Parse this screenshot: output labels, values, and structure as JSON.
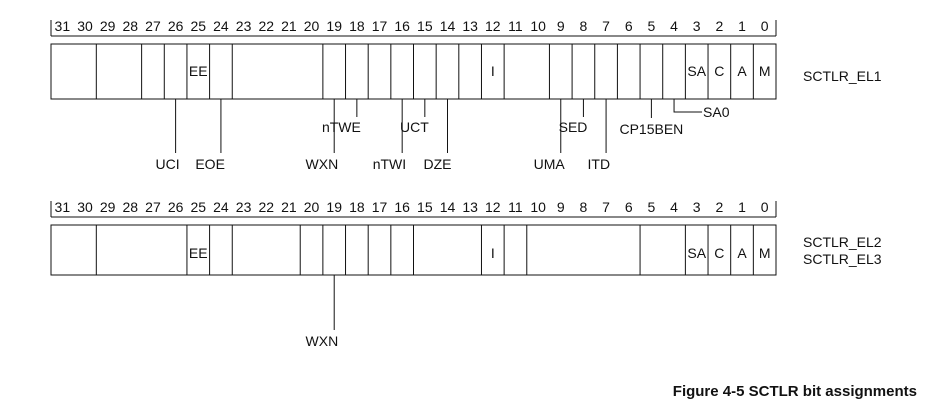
{
  "bit_numbers": [
    "31",
    "30",
    "29",
    "28",
    "27",
    "26",
    "25",
    "24",
    "23",
    "22",
    "21",
    "20",
    "19",
    "18",
    "17",
    "16",
    "15",
    "14",
    "13",
    "12",
    "11",
    "10",
    "9",
    "8",
    "7",
    "6",
    "5",
    "4",
    "3",
    "2",
    "1",
    "0"
  ],
  "registers": [
    {
      "names": [
        "SCTLR_EL1"
      ],
      "cells": [
        {
          "bits": "31-30",
          "label": ""
        },
        {
          "bits": "29-28",
          "label": ""
        },
        {
          "bits": "27",
          "label": ""
        },
        {
          "bits": "26",
          "label": ""
        },
        {
          "bits": "25",
          "label": "EE"
        },
        {
          "bits": "24",
          "label": ""
        },
        {
          "bits": "23-20",
          "label": ""
        },
        {
          "bits": "19",
          "label": ""
        },
        {
          "bits": "18",
          "label": ""
        },
        {
          "bits": "17",
          "label": ""
        },
        {
          "bits": "16",
          "label": ""
        },
        {
          "bits": "15",
          "label": ""
        },
        {
          "bits": "14",
          "label": ""
        },
        {
          "bits": "13",
          "label": ""
        },
        {
          "bits": "12",
          "label": "I"
        },
        {
          "bits": "11-10",
          "label": ""
        },
        {
          "bits": "9",
          "label": ""
        },
        {
          "bits": "8",
          "label": ""
        },
        {
          "bits": "7",
          "label": ""
        },
        {
          "bits": "6",
          "label": ""
        },
        {
          "bits": "5",
          "label": ""
        },
        {
          "bits": "4",
          "label": ""
        },
        {
          "bits": "3",
          "label": "SA"
        },
        {
          "bits": "2",
          "label": "C"
        },
        {
          "bits": "1",
          "label": "A"
        },
        {
          "bits": "0",
          "label": "M"
        }
      ],
      "callouts": [
        {
          "bit": 26,
          "label": "UCI",
          "level": "low"
        },
        {
          "bit": 24,
          "label": "EOE",
          "level": "low"
        },
        {
          "bit": 19,
          "label": "WXN",
          "level": "low"
        },
        {
          "bit": 18,
          "label": "nTWE",
          "level": "high"
        },
        {
          "bit": 16,
          "label": "nTWI",
          "level": "low"
        },
        {
          "bit": 15,
          "label": "UCT",
          "level": "high"
        },
        {
          "bit": 14,
          "label": "DZE",
          "level": "low"
        },
        {
          "bit": 9,
          "label": "UMA",
          "level": "low"
        },
        {
          "bit": 8,
          "label": "SED",
          "level": "high"
        },
        {
          "bit": 7,
          "label": "ITD",
          "level": "low"
        },
        {
          "bit": 5,
          "label": "CP15BEN",
          "level": "mid"
        },
        {
          "bit": 4,
          "label": "SA0",
          "level": "side"
        }
      ]
    },
    {
      "names": [
        "SCTLR_EL2",
        "SCTLR_EL3"
      ],
      "cells": [
        {
          "bits": "31-30",
          "label": ""
        },
        {
          "bits": "29-26",
          "label": ""
        },
        {
          "bits": "25",
          "label": "EE"
        },
        {
          "bits": "24",
          "label": ""
        },
        {
          "bits": "23-21",
          "label": ""
        },
        {
          "bits": "20",
          "label": ""
        },
        {
          "bits": "19",
          "label": ""
        },
        {
          "bits": "18",
          "label": ""
        },
        {
          "bits": "17",
          "label": ""
        },
        {
          "bits": "16",
          "label": ""
        },
        {
          "bits": "15-13",
          "label": ""
        },
        {
          "bits": "12",
          "label": "I"
        },
        {
          "bits": "11",
          "label": ""
        },
        {
          "bits": "10-6",
          "label": ""
        },
        {
          "bits": "5-4",
          "label": ""
        },
        {
          "bits": "3",
          "label": "SA"
        },
        {
          "bits": "2",
          "label": "C"
        },
        {
          "bits": "1",
          "label": "A"
        },
        {
          "bits": "0",
          "label": "M"
        }
      ],
      "callouts": [
        {
          "bit": 19,
          "label": "WXN",
          "level": "low"
        }
      ]
    }
  ],
  "caption": "Figure 4-5 SCTLR bit assignments"
}
